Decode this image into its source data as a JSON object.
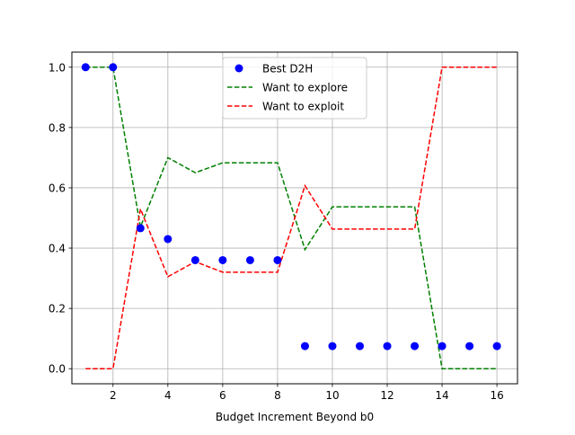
{
  "chart_data": {
    "type": "scatter",
    "title": "",
    "xlabel": "Budget Increment Beyond b0",
    "ylabel": "",
    "xlim": [
      0.5,
      16.75
    ],
    "ylim": [
      -0.05,
      1.05
    ],
    "xticks": [
      2,
      4,
      6,
      8,
      10,
      12,
      14,
      16
    ],
    "xtick_labels": [
      "2",
      "4",
      "6",
      "8",
      "10",
      "12",
      "14",
      "16"
    ],
    "yticks": [
      0.0,
      0.2,
      0.4,
      0.6,
      0.8,
      1.0
    ],
    "ytick_labels": [
      "0.0",
      "0.2",
      "0.4",
      "0.6",
      "0.8",
      "1.0"
    ],
    "grid": true,
    "legend_position": "top-center",
    "x": [
      1,
      2,
      3,
      4,
      5,
      6,
      7,
      8,
      9,
      10,
      11,
      12,
      13,
      14,
      15,
      16
    ],
    "series": [
      {
        "name": "Best D2H",
        "kind": "scatter",
        "color": "#0000ff",
        "values": [
          1.0,
          1.0,
          0.466,
          0.43,
          0.36,
          0.36,
          0.36,
          0.36,
          0.075,
          0.075,
          0.075,
          0.075,
          0.075,
          0.075,
          0.075,
          0.075
        ]
      },
      {
        "name": "Want to explore",
        "kind": "line",
        "style": "dashed",
        "color": "#008000",
        "values": [
          1.0,
          1.0,
          0.47,
          0.7,
          0.65,
          0.683,
          0.683,
          0.683,
          0.395,
          0.537,
          0.537,
          0.537,
          0.537,
          0.0,
          0.0,
          0.0
        ]
      },
      {
        "name": "Want to exploit",
        "kind": "line",
        "style": "dashed",
        "color": "#ff0000",
        "values": [
          0.0,
          0.0,
          0.53,
          0.305,
          0.355,
          0.32,
          0.32,
          0.32,
          0.607,
          0.463,
          0.463,
          0.463,
          0.463,
          1.0,
          1.0,
          1.0
        ]
      }
    ]
  }
}
